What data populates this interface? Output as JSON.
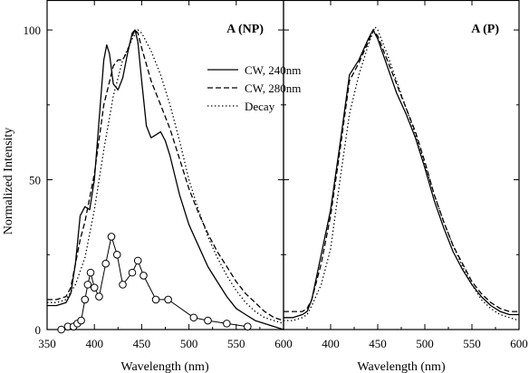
{
  "chart_data": [
    {
      "type": "line",
      "title": "A (NP)",
      "xlabel": "Wavelength (nm)",
      "ylabel": "Normalized Intensity",
      "xlim": [
        350,
        600
      ],
      "ylim": [
        0,
        110
      ],
      "x_ticks": [
        350,
        400,
        450,
        500,
        550,
        600
      ],
      "y_ticks": [
        0,
        50,
        100
      ],
      "grid": false,
      "legend_position": "top-right",
      "series": [
        {
          "name": "CW, 240nm",
          "style": "solid",
          "x": [
            350,
            360,
            370,
            375,
            380,
            385,
            390,
            395,
            400,
            405,
            410,
            413,
            416,
            420,
            425,
            430,
            435,
            440,
            443,
            446,
            450,
            455,
            460,
            465,
            470,
            475,
            480,
            490,
            500,
            510,
            520,
            530,
            540,
            550,
            560,
            570,
            580,
            590,
            600
          ],
          "y": [
            8,
            8,
            9,
            12,
            22,
            38,
            41,
            40,
            50,
            70,
            90,
            95,
            92,
            82,
            80,
            84,
            92,
            99,
            100,
            96,
            83,
            68,
            64,
            65,
            66,
            63,
            58,
            45,
            35,
            28,
            21,
            16,
            11,
            7,
            5,
            3,
            2,
            1,
            0
          ]
        },
        {
          "name": "CW, 280nm",
          "style": "dashed",
          "x": [
            350,
            360,
            370,
            375,
            380,
            385,
            390,
            400,
            410,
            420,
            425,
            430,
            435,
            440,
            443,
            446,
            450,
            460,
            470,
            480,
            490,
            500,
            510,
            520,
            530,
            540,
            550,
            560,
            570,
            580,
            590,
            600
          ],
          "y": [
            10,
            10,
            11,
            14,
            22,
            30,
            36,
            52,
            75,
            88,
            90,
            90,
            93,
            98,
            100,
            99,
            94,
            83,
            75,
            67,
            57,
            47,
            39,
            32,
            26,
            21,
            16,
            12,
            9,
            6,
            4,
            3
          ]
        },
        {
          "name": "Decay",
          "style": "dotted",
          "x": [
            350,
            360,
            370,
            380,
            390,
            400,
            410,
            420,
            430,
            440,
            446,
            450,
            460,
            470,
            480,
            490,
            500,
            510,
            520,
            530,
            540,
            550,
            560,
            570,
            580,
            590,
            600
          ],
          "y": [
            9,
            9,
            10,
            15,
            24,
            40,
            60,
            78,
            90,
            97,
            100,
            99,
            93,
            85,
            75,
            63,
            50,
            40,
            31,
            24,
            18,
            13,
            9,
            6,
            4,
            3,
            2
          ]
        },
        {
          "name": "",
          "style": "circles",
          "x": [
            365,
            372,
            378,
            382,
            386,
            390,
            393,
            396,
            400,
            405,
            412,
            418,
            424,
            430,
            440,
            446,
            452,
            465,
            478,
            505,
            520,
            540,
            562
          ],
          "y": [
            0,
            1,
            1,
            2,
            3,
            10,
            15,
            19,
            14,
            11,
            22,
            31,
            25,
            15,
            19,
            23,
            18,
            10,
            10,
            4,
            3,
            2,
            1
          ]
        }
      ]
    },
    {
      "type": "line",
      "title": "A (P)",
      "xlabel": "Wavelength (nm)",
      "ylabel": "",
      "xlim": [
        350,
        600
      ],
      "ylim": [
        0,
        110
      ],
      "x_ticks": [
        350,
        400,
        450,
        500,
        550,
        600
      ],
      "x_tick_labels": [
        "",
        "400",
        "450",
        "500",
        "550",
        "600"
      ],
      "y_ticks": [
        0,
        50,
        100
      ],
      "grid": false,
      "series": [
        {
          "name": "CW, 240nm",
          "style": "solid",
          "x": [
            350,
            360,
            370,
            375,
            380,
            390,
            400,
            410,
            420,
            430,
            440,
            445,
            450,
            460,
            470,
            480,
            490,
            500,
            510,
            520,
            530,
            540,
            550,
            560,
            570,
            580,
            590,
            600
          ],
          "y": [
            4,
            4,
            5,
            6,
            10,
            25,
            40,
            62,
            85,
            90,
            97,
            100,
            97,
            88,
            79,
            72,
            64,
            54,
            43,
            34,
            26,
            20,
            15,
            11,
            8,
            6,
            5,
            5
          ]
        },
        {
          "name": "CW, 280nm",
          "style": "dashed",
          "x": [
            350,
            360,
            370,
            375,
            380,
            390,
            400,
            410,
            420,
            430,
            440,
            445,
            450,
            460,
            470,
            480,
            490,
            500,
            510,
            520,
            530,
            540,
            550,
            560,
            570,
            580,
            590,
            600
          ],
          "y": [
            6,
            6,
            6,
            7,
            10,
            22,
            38,
            60,
            83,
            89,
            96,
            100,
            98,
            90,
            82,
            74,
            66,
            56,
            45,
            36,
            28,
            22,
            16,
            12,
            9,
            7,
            6,
            6
          ]
        },
        {
          "name": "Decay",
          "style": "dotted",
          "x": [
            350,
            360,
            370,
            375,
            380,
            390,
            400,
            410,
            420,
            430,
            440,
            447,
            450,
            460,
            470,
            480,
            490,
            500,
            510,
            520,
            530,
            540,
            550,
            560,
            570,
            580,
            590,
            600
          ],
          "y": [
            3,
            3,
            4,
            5,
            8,
            15,
            27,
            50,
            72,
            85,
            95,
            101,
            100,
            92,
            83,
            74,
            65,
            55,
            45,
            36,
            28,
            21,
            15,
            10,
            7,
            5,
            4,
            3
          ]
        }
      ]
    }
  ]
}
